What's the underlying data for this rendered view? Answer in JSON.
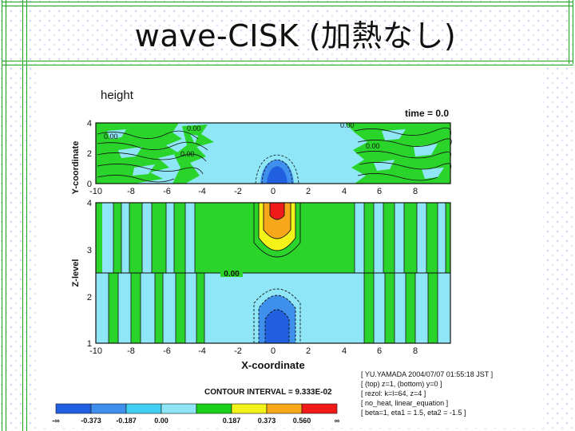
{
  "slide": {
    "title": "wave-CISK (加熱なし)"
  },
  "figure": {
    "variable": "height",
    "time_label": "time = 0.0",
    "top_panel": {
      "ylabel": "Y-coordinate",
      "yticks": [
        "0",
        "2",
        "4"
      ],
      "xticks": [
        "-10",
        "-8",
        "-6",
        "-4",
        "-2",
        "0",
        "2",
        "4",
        "6",
        "8"
      ],
      "contour_labels": [
        "0.00",
        "0.00",
        "0.00",
        "0.00",
        "0.00"
      ]
    },
    "bottom_panel": {
      "ylabel": "Z-level",
      "xlabel": "X-coordinate",
      "yticks": [
        "1",
        "2",
        "3",
        "4"
      ],
      "xticks": [
        "-10",
        "-8",
        "-6",
        "-4",
        "-2",
        "0",
        "2",
        "4",
        "6",
        "8"
      ],
      "center_label": "0.00"
    },
    "info_box": [
      "[ YU.YAMADA 2004/07/07 01:55:18 JST ]",
      "[ (top) z=1, (bottom) y=0 ]",
      "[ rezol: k=l=64, z=4 ]",
      "[ no_heat, linear_equation ]",
      "[ beta=1, eta1 = 1.5, eta2 = -1.5 ]"
    ],
    "contour_interval": "CONTOUR INTERVAL = 9.333E-02",
    "colorbar": {
      "labels": [
        "-∞",
        "-0.373",
        "-0.187",
        "0.00",
        "0.187",
        "0.373",
        "0.560",
        "∞"
      ],
      "colors": [
        "#1f5fe0",
        "#3f8fec",
        "#3fd0f2",
        "#8fe6f7",
        "#1ad21a",
        "#f3f31a",
        "#f7a81a",
        "#f01a1a"
      ]
    },
    "colors": {
      "cyan": "#8fe6f7",
      "green": "#2ad42a",
      "blue_light": "#3f8fec",
      "blue_dark": "#1f5fe0",
      "yellow": "#f3f31a",
      "orange": "#f7a81a",
      "red": "#f01a1a"
    }
  }
}
